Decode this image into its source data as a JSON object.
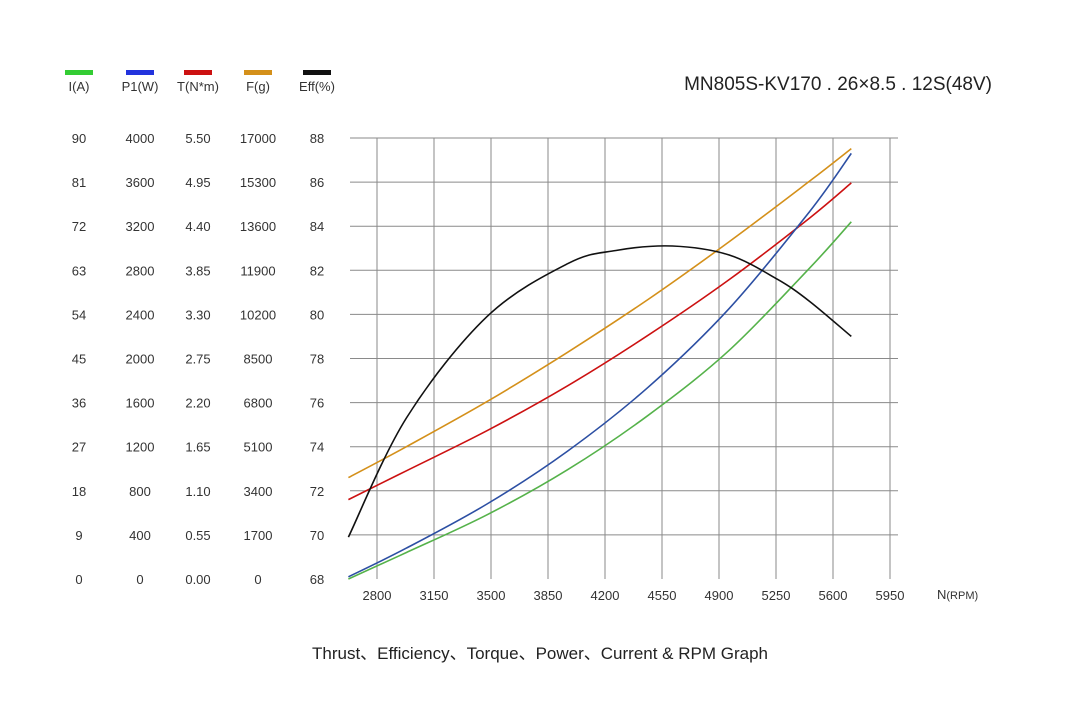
{
  "chart_data": {
    "type": "line",
    "title": "MN805S-KV170 . 26×8.5 . 12S(48V)",
    "caption": "Thrust、Efficiency、Torque、Power、Current & RPM Graph",
    "xlabel": "N",
    "xlabel_unit": "(RPM)",
    "xlim": [
      2650,
      6050
    ],
    "x_ticks": [
      "2800",
      "3150",
      "3500",
      "3850",
      "4200",
      "4550",
      "4900",
      "5250",
      "5600",
      "5950"
    ],
    "grid": true,
    "legend_position": "top-left",
    "axes": [
      {
        "id": "I",
        "label": "I(A)",
        "color": "#33cc33",
        "ticks": [
          "0",
          "9",
          "18",
          "27",
          "36",
          "45",
          "54",
          "63",
          "72",
          "81",
          "90"
        ],
        "ylim": [
          0,
          90
        ]
      },
      {
        "id": "P1",
        "label": "P1(W)",
        "color": "#2233dd",
        "ticks": [
          "0",
          "400",
          "800",
          "1200",
          "1600",
          "2000",
          "2400",
          "2800",
          "3200",
          "3600",
          "4000"
        ],
        "ylim": [
          0,
          4000
        ]
      },
      {
        "id": "T",
        "label": "T(N*m)",
        "color": "#cc1111",
        "ticks": [
          "0.00",
          "0.55",
          "1.10",
          "1.65",
          "2.20",
          "2.75",
          "3.30",
          "3.85",
          "4.40",
          "4.95",
          "5.50"
        ],
        "ylim": [
          0,
          5.5
        ]
      },
      {
        "id": "F",
        "label": "F(g)",
        "color": "#d4901a",
        "ticks": [
          "0",
          "1700",
          "3400",
          "5100",
          "6800",
          "8500",
          "10200",
          "11900",
          "13600",
          "15300",
          "17000"
        ],
        "ylim": [
          0,
          17000
        ]
      },
      {
        "id": "Eff",
        "label": "Eff(%)",
        "color": "#111111",
        "ticks": [
          "68",
          "70",
          "72",
          "74",
          "76",
          "78",
          "80",
          "82",
          "84",
          "86",
          "88"
        ],
        "ylim": [
          68,
          88
        ]
      }
    ],
    "series": [
      {
        "axis": "F",
        "color": "#d4901a",
        "x": [
          2640,
          3000,
          3500,
          4000,
          4500,
          5000,
          5500,
          5760
        ],
        "y": [
          3910,
          5100,
          6840,
          8740,
          10780,
          12990,
          15330,
          16590
        ]
      },
      {
        "axis": "T",
        "color": "#cc1111",
        "x": [
          2640,
          3000,
          3500,
          4000,
          4500,
          5000,
          5500,
          5760
        ],
        "y": [
          0.99,
          1.35,
          1.85,
          2.41,
          3.04,
          3.73,
          4.5,
          4.94
        ]
      },
      {
        "axis": "P1",
        "color": "#2c4fa3",
        "x": [
          2640,
          3000,
          3500,
          4000,
          4500,
          5000,
          5500,
          5760
        ],
        "y": [
          20,
          280,
          680,
          1160,
          1740,
          2450,
          3330,
          3860
        ]
      },
      {
        "axis": "I",
        "color": "#55b24a",
        "x": [
          2640,
          3000,
          3500,
          4000,
          4500,
          5000,
          5500,
          5760
        ],
        "y": [
          0,
          5.4,
          13.1,
          22.3,
          33.4,
          46.6,
          63.4,
          72.9
        ]
      },
      {
        "axis": "Eff",
        "color": "#111111",
        "x": [
          2640,
          3000,
          3500,
          4000,
          4300,
          4650,
          5000,
          5300,
          5500,
          5760
        ],
        "y": [
          69.9,
          75.3,
          79.9,
          82.3,
          82.9,
          83.1,
          82.7,
          81.6,
          80.6,
          79.0
        ]
      }
    ]
  }
}
